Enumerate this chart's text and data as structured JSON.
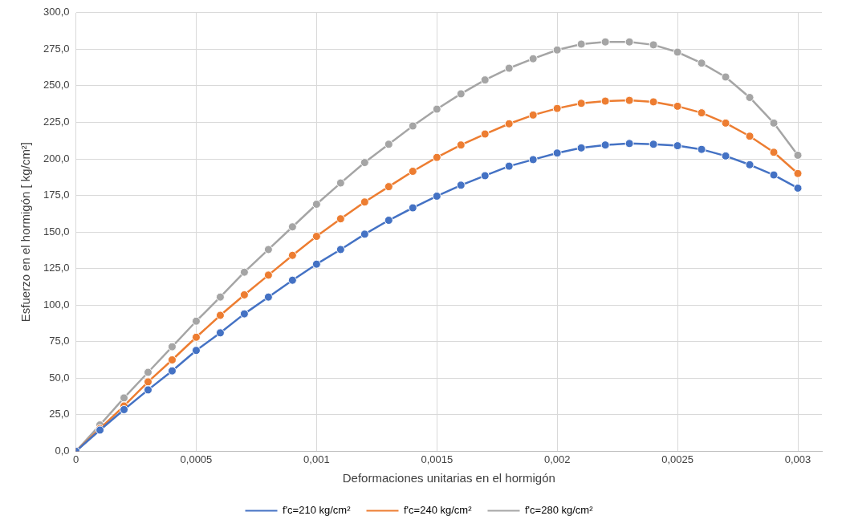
{
  "chart_data": {
    "type": "line",
    "xlabel": "Deformaciones unitarias en el hormigón",
    "ylabel": "Esfuerzo en el hormigón [ kg/cm²]",
    "x": [
      0,
      0.0001,
      0.0002,
      0.0003,
      0.0004,
      0.0005,
      0.0006,
      0.0007,
      0.0008,
      0.0009,
      0.001,
      0.0011,
      0.0012,
      0.0013,
      0.0014,
      0.0015,
      0.0016,
      0.0017,
      0.0018,
      0.0019,
      0.002,
      0.0021,
      0.0022,
      0.0023,
      0.0024,
      0.0025,
      0.0026,
      0.0027,
      0.0028,
      0.0029,
      0.003
    ],
    "series": [
      {
        "name": "f'c=210 kg/cm²",
        "color": "#4472c4",
        "values": [
          0,
          14.5,
          28.5,
          42,
          55,
          69,
          81,
          94,
          105.5,
          117,
          128,
          138,
          148.5,
          158,
          166.5,
          174.5,
          182,
          188.5,
          195,
          199.5,
          204,
          207.5,
          209.5,
          210.5,
          210,
          209,
          206.5,
          202,
          196,
          189,
          180
        ]
      },
      {
        "name": "f'c=240 kg/cm²",
        "color": "#ed7d31",
        "values": [
          0,
          15.5,
          31,
          47.5,
          62.5,
          78,
          93,
          107,
          120.5,
          134,
          147,
          159,
          170.5,
          181,
          191.5,
          201,
          209.5,
          217,
          224,
          230,
          234.5,
          238,
          239.5,
          240,
          239,
          236,
          231.5,
          224.5,
          215.5,
          204.5,
          190
        ]
      },
      {
        "name": "f'c=280 kg/cm²",
        "color": "#a5a5a5",
        "values": [
          0,
          18,
          36.5,
          54,
          71.5,
          89,
          105.5,
          122.5,
          138,
          153.5,
          169,
          183.5,
          197.5,
          210,
          222.5,
          234,
          244.5,
          254,
          262,
          268.5,
          274.5,
          278.5,
          280,
          280,
          278,
          273,
          265.5,
          256,
          242,
          224.5,
          202.5
        ]
      }
    ],
    "xlim": [
      0,
      0.0031
    ],
    "xticks": [
      0,
      {
        "value": 0.0005,
        "label": "0,0005"
      },
      {
        "value": 0.001,
        "label": "0,001"
      },
      {
        "value": 0.0015,
        "label": "0,0015"
      },
      {
        "value": 0.002,
        "label": "0,002"
      },
      {
        "value": 0.0025,
        "label": "0,0025"
      },
      {
        "value": 0.003,
        "label": "0,003"
      }
    ],
    "ylim": [
      0,
      300
    ],
    "yticks": [
      {
        "value": 0,
        "label": "0,0"
      },
      {
        "value": 25,
        "label": "25,0"
      },
      {
        "value": 50,
        "label": "50,0"
      },
      {
        "value": 75,
        "label": "75,0"
      },
      {
        "value": 100,
        "label": "100,0"
      },
      {
        "value": 125,
        "label": "125,0"
      },
      {
        "value": 150,
        "label": "150,0"
      },
      {
        "value": 175,
        "label": "175,0"
      },
      {
        "value": 200,
        "label": "200,0"
      },
      {
        "value": 225,
        "label": "225,0"
      },
      {
        "value": 250,
        "label": "250,0"
      },
      {
        "value": 275,
        "label": "275,0"
      },
      {
        "value": 300,
        "label": "300,0"
      }
    ],
    "grid": true,
    "legend": "bottom",
    "marker": "circle",
    "line_style": "solid"
  }
}
